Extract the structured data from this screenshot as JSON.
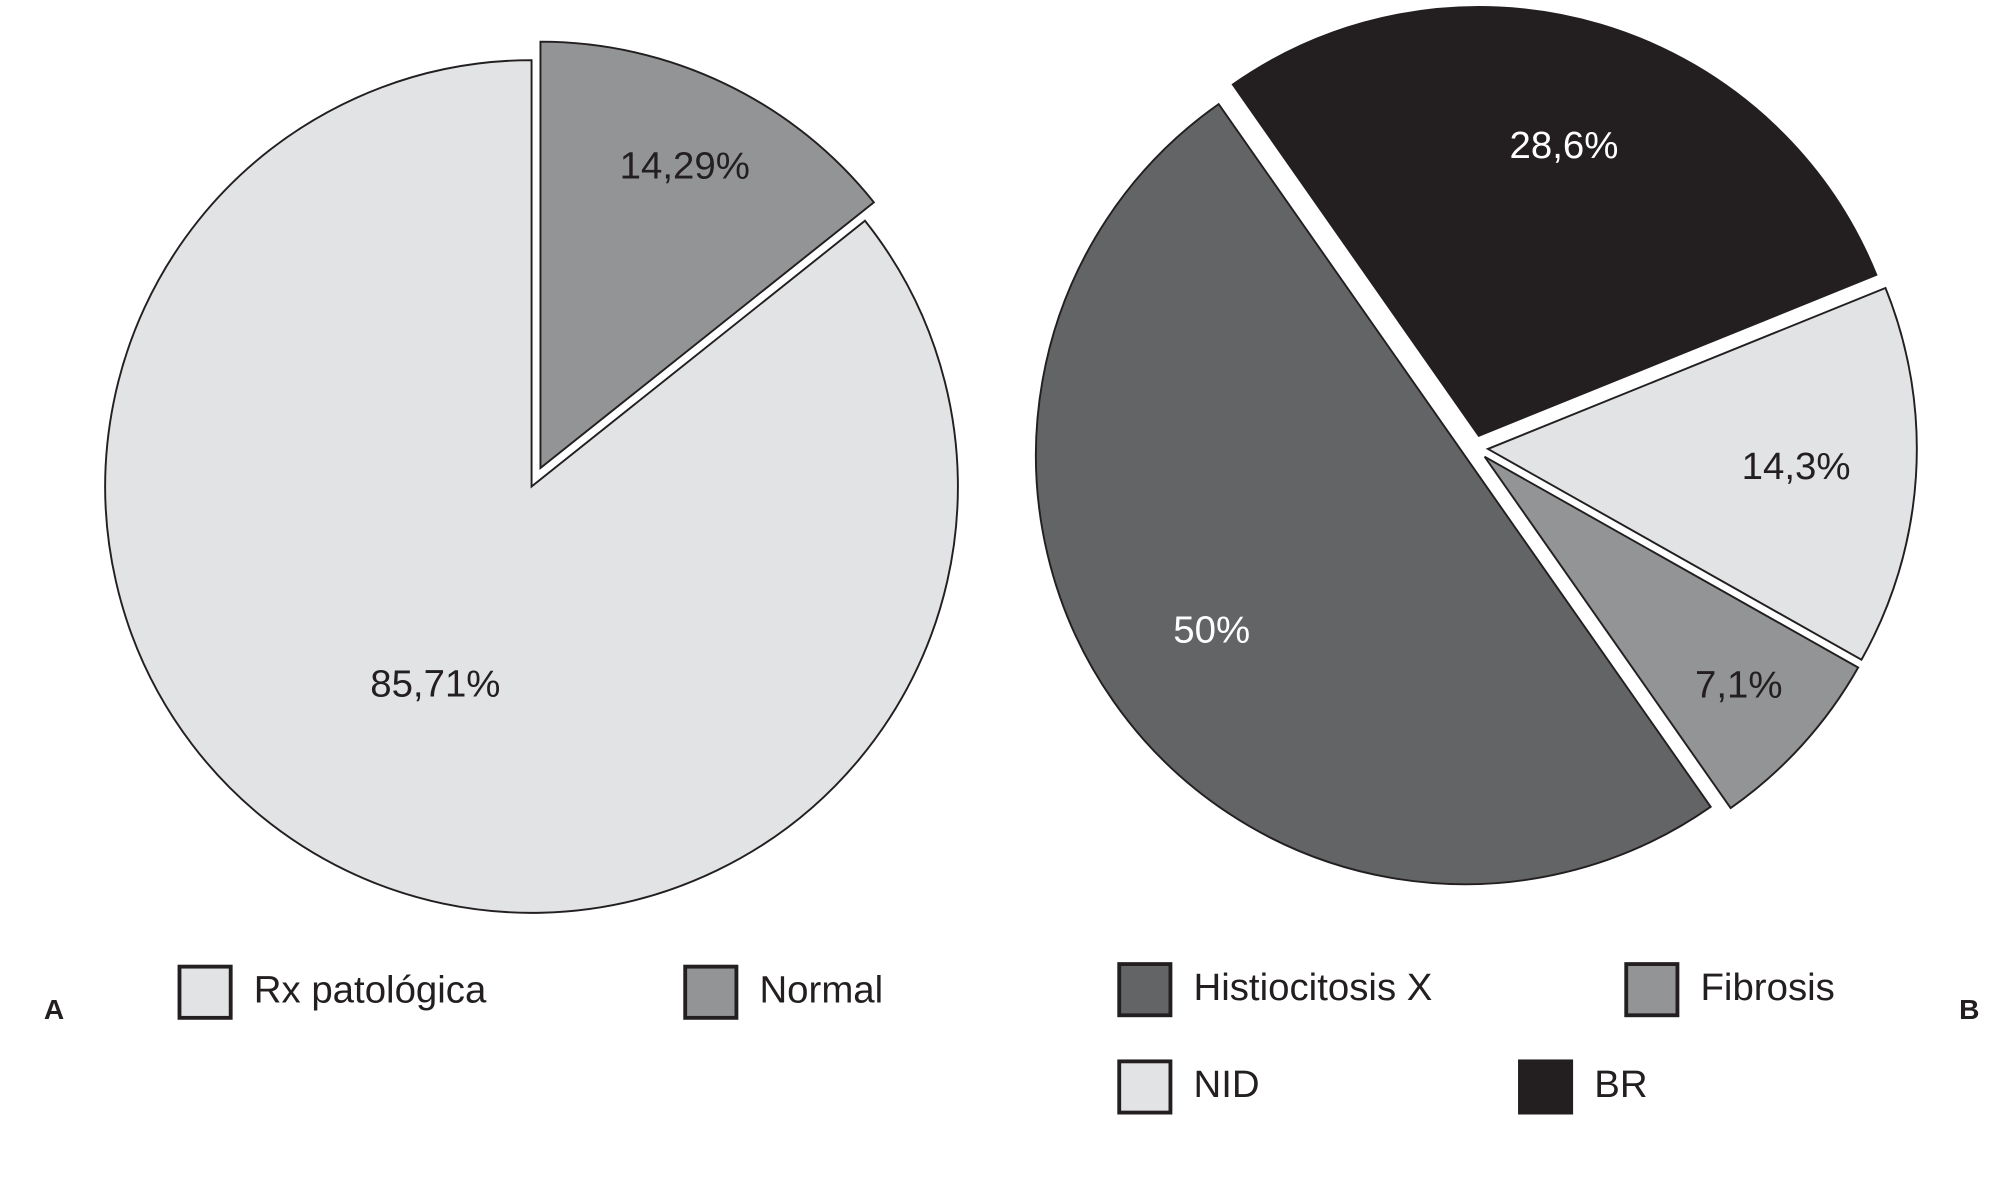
{
  "chart_data": [
    {
      "type": "pie",
      "panel_label": "A",
      "categories": [
        "Rx patológica",
        "Normal"
      ],
      "values": [
        85.71,
        14.29
      ],
      "value_labels": [
        "85,71%",
        "14,29%"
      ],
      "colors": [
        "#e2e3e5",
        "#939495"
      ]
    },
    {
      "type": "pie",
      "panel_label": "B",
      "categories": [
        "Histiocitosis X",
        "Fibrosis",
        "NID",
        "BR"
      ],
      "values": [
        50,
        7.1,
        14.3,
        28.6
      ],
      "value_labels": [
        "50%",
        "7,1%",
        "14,3%",
        "28,6%"
      ],
      "colors": [
        "#636466",
        "#939495",
        "#e2e3e5",
        "#231f20"
      ]
    }
  ]
}
